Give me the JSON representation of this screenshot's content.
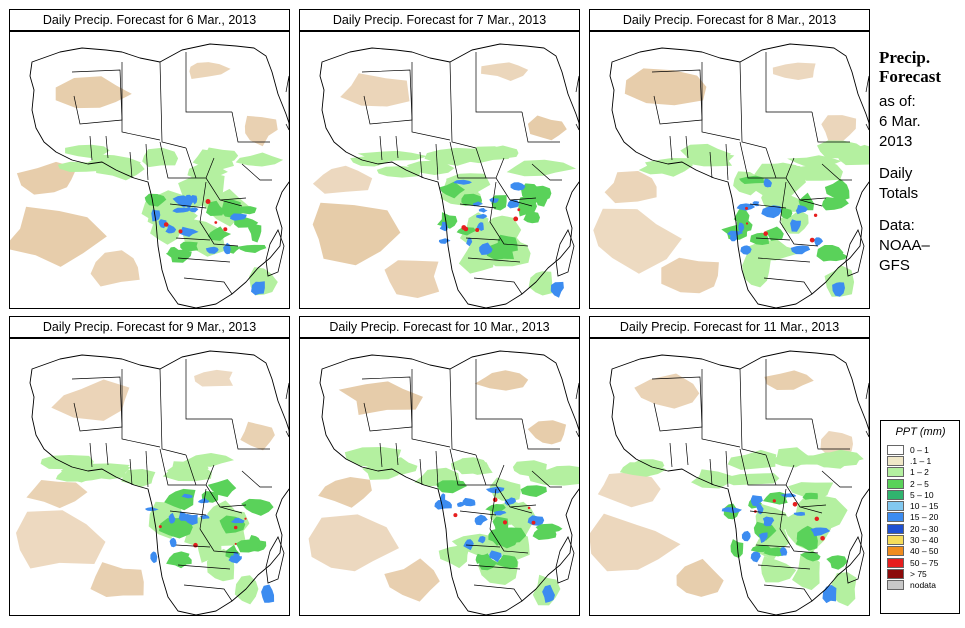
{
  "panels": [
    {
      "title": "Daily Precip. Forecast for  6 Mar., 2013"
    },
    {
      "title": "Daily Precip. Forecast for  7 Mar., 2013"
    },
    {
      "title": "Daily Precip. Forecast for  8 Mar., 2013"
    },
    {
      "title": "Daily Precip. Forecast for  9 Mar., 2013"
    },
    {
      "title": "Daily Precip. Forecast for  10 Mar., 2013"
    },
    {
      "title": "Daily Precip. Forecast for  11 Mar., 2013"
    }
  ],
  "sidebar": {
    "title_line1": "Precip.",
    "title_line2": "Forecast",
    "asof_line1": "as of:",
    "asof_line2": "6 Mar.",
    "asof_line3": "2013",
    "totals_line1": "Daily",
    "totals_line2": "Totals",
    "data_line1": "Data:",
    "data_line2": "NOAA–",
    "data_line3": "GFS"
  },
  "legend": {
    "title": "PPT (mm)",
    "items": [
      {
        "label": "0 – 1",
        "color": "#ffffff"
      },
      {
        "label": ".1 – 1",
        "color": "#f0e8c8"
      },
      {
        "label": "1 – 2",
        "color": "#b4f0a0"
      },
      {
        "label": "2 – 5",
        "color": "#5ad25a"
      },
      {
        "label": "5 – 10",
        "color": "#30b46e"
      },
      {
        "label": "10 – 15",
        "color": "#82c8f0"
      },
      {
        "label": "15 – 20",
        "color": "#3c8cf0"
      },
      {
        "label": "20 – 30",
        "color": "#1e50d2"
      },
      {
        "label": "30 – 40",
        "color": "#f5dc5a"
      },
      {
        "label": "40 – 50",
        "color": "#f08c1e"
      },
      {
        "label": "50 – 75",
        "color": "#e61e1e"
      },
      {
        "label": "> 75",
        "color": "#8c0a0a"
      },
      {
        "label": "nodata",
        "color": "#c8c8c8"
      }
    ]
  },
  "colors": {
    "dry": "#e6cba8",
    "light": "#b4f0a0",
    "moderate": "#5ad25a",
    "heavy": "#3c8cf0",
    "intense": "#e61e1e"
  }
}
